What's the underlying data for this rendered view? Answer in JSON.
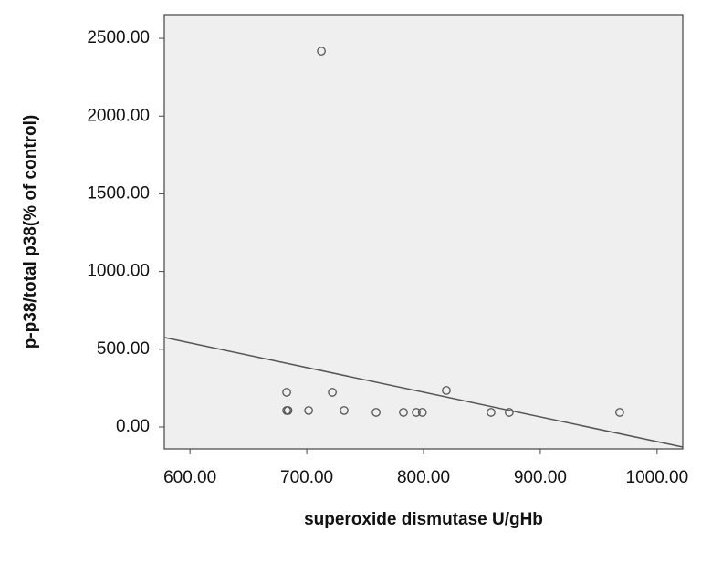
{
  "chart_data": {
    "type": "scatter",
    "x_label": "superoxide dismutase U/gHb",
    "y_label": "p-p38/total p38(% of control)",
    "x": [
      712.5,
      682.8,
      682.8,
      684,
      701.6,
      721.9,
      732,
      759.4,
      782.8,
      793.8,
      799,
      819.5,
      857.8,
      873.4,
      968
    ],
    "y": [
      2418,
      223,
      106,
      106,
      106,
      223,
      106,
      94,
      94,
      94,
      94,
      235,
      94,
      94,
      94
    ],
    "fit_line": {
      "x": [
        578,
        1022
      ],
      "y": [
        576,
        -129
      ]
    },
    "xlim": [
      578,
      1022
    ],
    "ylim": [
      -141,
      2653
    ],
    "xticks": [
      {
        "value": 600,
        "label": "600.00"
      },
      {
        "value": 700,
        "label": "700.00"
      },
      {
        "value": 800,
        "label": "800.00"
      },
      {
        "value": 900,
        "label": "900.00"
      },
      {
        "value": 1000,
        "label": "1000.00"
      }
    ],
    "yticks": [
      {
        "value": 0,
        "label": "0.00"
      },
      {
        "value": 500,
        "label": "500.00"
      },
      {
        "value": 1000,
        "label": "1000.00"
      },
      {
        "value": 1500,
        "label": "1500.00"
      },
      {
        "value": 2000,
        "label": "2000.00"
      },
      {
        "value": 2500,
        "label": "2500.00"
      }
    ],
    "grid": false,
    "plot_background": "#efefef",
    "marker_color": "#555555",
    "line_color": "#555555"
  }
}
